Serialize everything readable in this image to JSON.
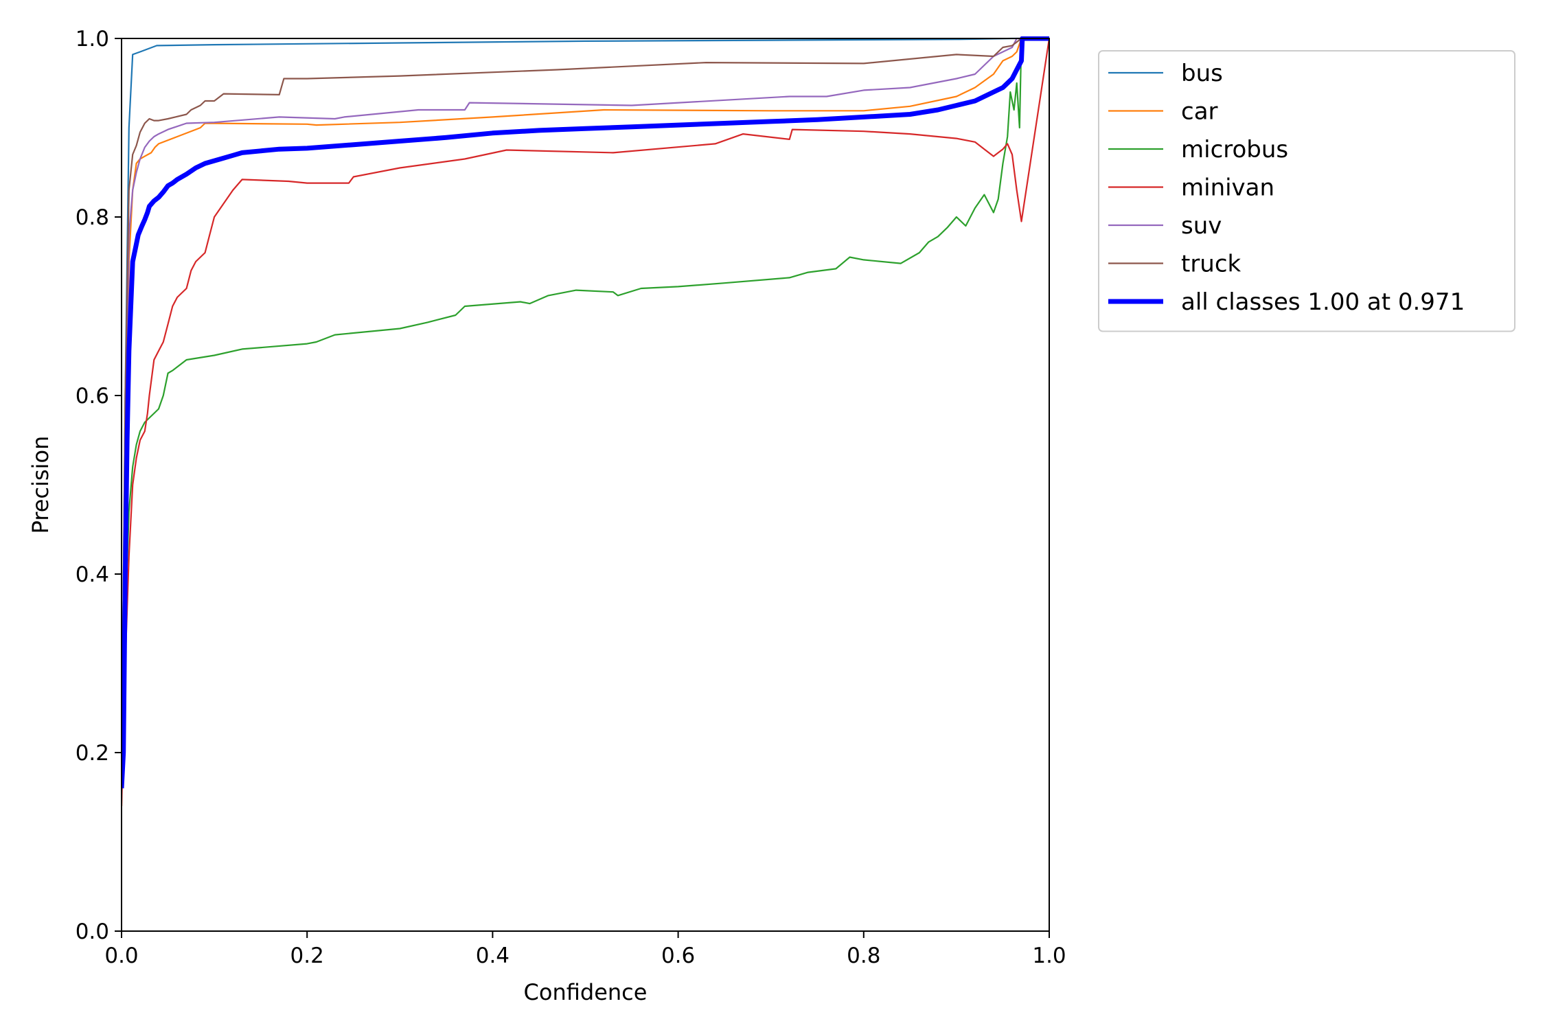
{
  "chart_data": {
    "type": "line",
    "title": "",
    "xlabel": "Confidence",
    "ylabel": "Precision",
    "xlim": [
      0,
      1
    ],
    "ylim": [
      0,
      1
    ],
    "xticks": [
      "0.0",
      "0.2",
      "0.4",
      "0.6",
      "0.8",
      "1.0"
    ],
    "yticks": [
      "0.0",
      "0.2",
      "0.4",
      "0.6",
      "0.8",
      "1.0"
    ],
    "grid": false,
    "legend_position": "outside-top-right",
    "series": [
      {
        "name": "bus",
        "color": "#1f77b4",
        "width": 1,
        "x": [
          0.0,
          0.004,
          0.008,
          0.012,
          0.02,
          0.038,
          0.1,
          0.3,
          0.5,
          0.7,
          0.9,
          0.96,
          1.0
        ],
        "y": [
          0.16,
          0.6,
          0.9,
          0.982,
          0.985,
          0.992,
          0.993,
          0.995,
          0.997,
          0.998,
          0.999,
          1.0,
          1.0
        ]
      },
      {
        "name": "car",
        "color": "#ff7f0e",
        "width": 1,
        "x": [
          0.0,
          0.004,
          0.008,
          0.012,
          0.016,
          0.02,
          0.025,
          0.032,
          0.036,
          0.04,
          0.06,
          0.08,
          0.085,
          0.09,
          0.2,
          0.21,
          0.3,
          0.4,
          0.52,
          0.7,
          0.8,
          0.85,
          0.9,
          0.92,
          0.94,
          0.95,
          0.96,
          0.965,
          0.97,
          1.0
        ],
        "y": [
          0.14,
          0.5,
          0.75,
          0.83,
          0.86,
          0.865,
          0.868,
          0.872,
          0.878,
          0.882,
          0.89,
          0.898,
          0.9,
          0.905,
          0.904,
          0.903,
          0.906,
          0.912,
          0.92,
          0.919,
          0.919,
          0.924,
          0.935,
          0.945,
          0.96,
          0.975,
          0.98,
          0.985,
          1.0,
          1.0
        ]
      },
      {
        "name": "microbus",
        "color": "#2ca02c",
        "width": 1,
        "x": [
          0.0,
          0.004,
          0.008,
          0.012,
          0.016,
          0.02,
          0.025,
          0.03,
          0.035,
          0.04,
          0.045,
          0.05,
          0.055,
          0.06,
          0.07,
          0.1,
          0.13,
          0.2,
          0.21,
          0.23,
          0.3,
          0.33,
          0.36,
          0.37,
          0.43,
          0.44,
          0.46,
          0.49,
          0.53,
          0.535,
          0.56,
          0.6,
          0.65,
          0.72,
          0.74,
          0.77,
          0.785,
          0.8,
          0.84,
          0.86,
          0.87,
          0.88,
          0.89,
          0.9,
          0.91,
          0.92,
          0.93,
          0.94,
          0.945,
          0.95,
          0.955,
          0.958,
          0.962,
          0.965,
          0.968,
          0.97,
          1.0
        ],
        "y": [
          0.15,
          0.35,
          0.47,
          0.52,
          0.545,
          0.56,
          0.57,
          0.575,
          0.58,
          0.585,
          0.6,
          0.625,
          0.628,
          0.632,
          0.64,
          0.645,
          0.652,
          0.658,
          0.66,
          0.668,
          0.675,
          0.682,
          0.69,
          0.7,
          0.705,
          0.703,
          0.712,
          0.718,
          0.716,
          0.712,
          0.72,
          0.722,
          0.726,
          0.732,
          0.738,
          0.742,
          0.755,
          0.752,
          0.748,
          0.76,
          0.772,
          0.778,
          0.788,
          0.8,
          0.79,
          0.81,
          0.825,
          0.805,
          0.82,
          0.86,
          0.89,
          0.94,
          0.92,
          0.95,
          0.9,
          1.0,
          1.0
        ]
      },
      {
        "name": "minivan",
        "color": "#d62728",
        "width": 1,
        "x": [
          0.0,
          0.004,
          0.008,
          0.012,
          0.016,
          0.02,
          0.025,
          0.028,
          0.03,
          0.035,
          0.04,
          0.045,
          0.05,
          0.055,
          0.06,
          0.065,
          0.07,
          0.075,
          0.08,
          0.09,
          0.095,
          0.1,
          0.11,
          0.12,
          0.13,
          0.18,
          0.2,
          0.245,
          0.25,
          0.3,
          0.37,
          0.415,
          0.53,
          0.64,
          0.67,
          0.72,
          0.723,
          0.8,
          0.85,
          0.9,
          0.92,
          0.93,
          0.94,
          0.945,
          0.95,
          0.955,
          0.96,
          0.965,
          0.97,
          1.0
        ],
        "y": [
          0.14,
          0.3,
          0.42,
          0.5,
          0.53,
          0.55,
          0.56,
          0.58,
          0.6,
          0.64,
          0.65,
          0.66,
          0.68,
          0.7,
          0.71,
          0.715,
          0.72,
          0.74,
          0.75,
          0.76,
          0.78,
          0.8,
          0.815,
          0.83,
          0.842,
          0.84,
          0.838,
          0.838,
          0.845,
          0.855,
          0.865,
          0.875,
          0.872,
          0.882,
          0.893,
          0.887,
          0.898,
          0.896,
          0.893,
          0.888,
          0.884,
          0.876,
          0.868,
          0.872,
          0.876,
          0.882,
          0.87,
          0.83,
          0.795,
          1.0
        ]
      },
      {
        "name": "suv",
        "color": "#9467bd",
        "width": 1,
        "x": [
          0.0,
          0.004,
          0.008,
          0.012,
          0.016,
          0.02,
          0.025,
          0.03,
          0.035,
          0.04,
          0.05,
          0.07,
          0.1,
          0.17,
          0.23,
          0.24,
          0.32,
          0.37,
          0.375,
          0.55,
          0.72,
          0.76,
          0.8,
          0.85,
          0.9,
          0.92,
          0.93,
          0.94,
          0.95,
          0.96,
          0.965,
          1.0
        ],
        "y": [
          0.16,
          0.55,
          0.78,
          0.83,
          0.85,
          0.865,
          0.878,
          0.885,
          0.89,
          0.893,
          0.898,
          0.905,
          0.906,
          0.912,
          0.91,
          0.912,
          0.92,
          0.92,
          0.928,
          0.925,
          0.935,
          0.935,
          0.942,
          0.945,
          0.955,
          0.96,
          0.97,
          0.98,
          0.985,
          0.99,
          1.0,
          1.0
        ]
      },
      {
        "name": "truck",
        "color": "#8c564b",
        "width": 1,
        "x": [
          0.0,
          0.004,
          0.008,
          0.012,
          0.016,
          0.02,
          0.025,
          0.03,
          0.035,
          0.04,
          0.05,
          0.07,
          0.075,
          0.085,
          0.09,
          0.1,
          0.11,
          0.17,
          0.175,
          0.2,
          0.3,
          0.47,
          0.63,
          0.8,
          0.9,
          0.94,
          0.95,
          0.96,
          0.97,
          1.0
        ],
        "y": [
          0.16,
          0.6,
          0.83,
          0.87,
          0.88,
          0.895,
          0.905,
          0.91,
          0.908,
          0.908,
          0.91,
          0.915,
          0.92,
          0.925,
          0.93,
          0.93,
          0.938,
          0.937,
          0.955,
          0.955,
          0.958,
          0.965,
          0.973,
          0.972,
          0.982,
          0.98,
          0.99,
          0.992,
          1.0,
          1.0
        ]
      },
      {
        "name": "all classes 1.00 at 0.971",
        "color": "#0000ff",
        "width": 4,
        "x": [
          0.0,
          0.002,
          0.004,
          0.006,
          0.008,
          0.01,
          0.012,
          0.015,
          0.018,
          0.022,
          0.025,
          0.028,
          0.03,
          0.035,
          0.04,
          0.045,
          0.05,
          0.055,
          0.06,
          0.07,
          0.08,
          0.09,
          0.1,
          0.11,
          0.12,
          0.13,
          0.15,
          0.17,
          0.2,
          0.25,
          0.3,
          0.35,
          0.4,
          0.45,
          0.5,
          0.55,
          0.6,
          0.65,
          0.7,
          0.75,
          0.8,
          0.85,
          0.88,
          0.9,
          0.92,
          0.93,
          0.94,
          0.95,
          0.96,
          0.965,
          0.97,
          0.971,
          1.0
        ],
        "y": [
          0.16,
          0.2,
          0.4,
          0.55,
          0.65,
          0.7,
          0.75,
          0.765,
          0.78,
          0.79,
          0.797,
          0.805,
          0.812,
          0.818,
          0.822,
          0.828,
          0.835,
          0.838,
          0.842,
          0.848,
          0.855,
          0.86,
          0.863,
          0.866,
          0.869,
          0.872,
          0.874,
          0.876,
          0.877,
          0.881,
          0.885,
          0.889,
          0.894,
          0.897,
          0.899,
          0.901,
          0.903,
          0.905,
          0.907,
          0.909,
          0.912,
          0.915,
          0.92,
          0.925,
          0.93,
          0.935,
          0.94,
          0.945,
          0.955,
          0.965,
          0.975,
          1.0,
          1.0
        ]
      }
    ]
  }
}
